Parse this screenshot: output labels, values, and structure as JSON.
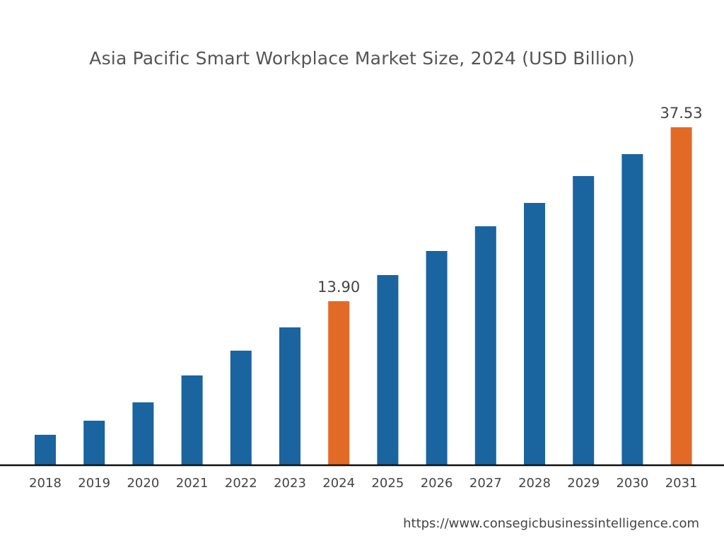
{
  "chart_data": {
    "type": "bar",
    "title": "Asia Pacific Smart Workplace Market Size, 2024 (USD Billion)",
    "xlabel": "",
    "ylabel": "",
    "categories": [
      "2018",
      "2019",
      "2020",
      "2021",
      "2022",
      "2023",
      "2024",
      "2025",
      "2026",
      "2027",
      "2028",
      "2029",
      "2030",
      "2031"
    ],
    "values": [
      2.53,
      3.73,
      5.29,
      7.58,
      9.69,
      11.67,
      13.9,
      17.45,
      20.72,
      24.08,
      27.25,
      30.9,
      33.88,
      37.53
    ],
    "data_labels": {
      "2024": "13.90",
      "2031": "37.53"
    },
    "highlighted": [
      "2024",
      "2031"
    ],
    "colors": {
      "default": "#1a64a0",
      "highlight": "#e26a26"
    },
    "grid": false,
    "y_axis_visible": false
  },
  "source": "https://www.consegicbusinessintelligence.com"
}
